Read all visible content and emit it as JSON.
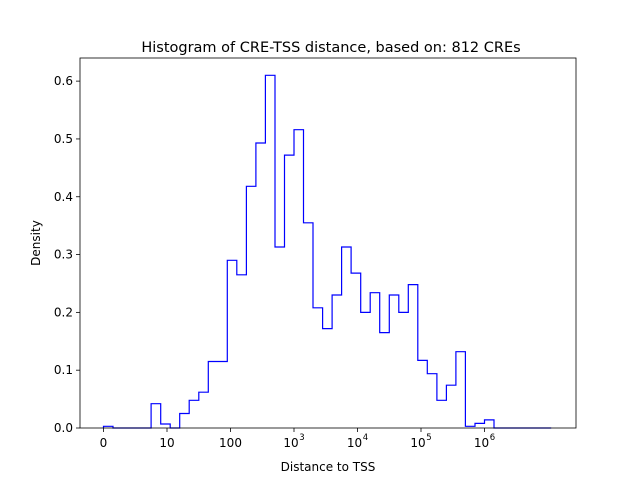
{
  "chart_data": {
    "type": "histogram",
    "title": "Histogram of CRE-TSS distance, based on: 812 CREs",
    "xlabel": "Distance to TSS",
    "ylabel": "Density",
    "x_scale": "symlog",
    "x_ticks": [
      {
        "value": 0,
        "label": "0"
      },
      {
        "value": 10,
        "label": "10"
      },
      {
        "value": 100,
        "label": "100"
      },
      {
        "value": 1000,
        "label": "10",
        "exp": "3"
      },
      {
        "value": 10000,
        "label": "10",
        "exp": "4"
      },
      {
        "value": 100000,
        "label": "10",
        "exp": "5"
      },
      {
        "value": 1000000,
        "label": "10",
        "exp": "6"
      }
    ],
    "ylim": [
      0,
      0.64
    ],
    "y_ticks": [
      0.0,
      0.1,
      0.2,
      0.3,
      0.4,
      0.5,
      0.6
    ],
    "y_tick_labels": [
      "0.0",
      "0.1",
      "0.2",
      "0.3",
      "0.4",
      "0.5",
      "0.6"
    ],
    "grid": false,
    "step_color": "#0000ff",
    "bin_edges_log": [
      0.0,
      0.15,
      0.3,
      0.45,
      0.6,
      0.75,
      0.9,
      1.05,
      1.2,
      1.35,
      1.5,
      1.65,
      1.8,
      1.95,
      2.1,
      2.25,
      2.4,
      2.55,
      2.7,
      2.85,
      3.0,
      3.15,
      3.3,
      3.45,
      3.6,
      3.75,
      3.9,
      4.05,
      4.2,
      4.35,
      4.5,
      4.65,
      4.8,
      4.95,
      5.1,
      5.25,
      5.4,
      5.55,
      5.7,
      5.85,
      6.0,
      6.15,
      6.3,
      6.45,
      6.6,
      6.75,
      6.9,
      7.05
    ],
    "densities": [
      0.003,
      0.0,
      0.0,
      0.0,
      0.0,
      0.042,
      0.007,
      0.0,
      0.025,
      0.048,
      0.062,
      0.115,
      0.115,
      0.29,
      0.265,
      0.418,
      0.493,
      0.61,
      0.313,
      0.472,
      0.516,
      0.355,
      0.208,
      0.172,
      0.23,
      0.313,
      0.268,
      0.2,
      0.234,
      0.165,
      0.23,
      0.2,
      0.248,
      0.117,
      0.094,
      0.048,
      0.074,
      0.132,
      0.003,
      0.008,
      0.014,
      0.0,
      0.0,
      0.0,
      0.0,
      0.0,
      0.0
    ]
  }
}
